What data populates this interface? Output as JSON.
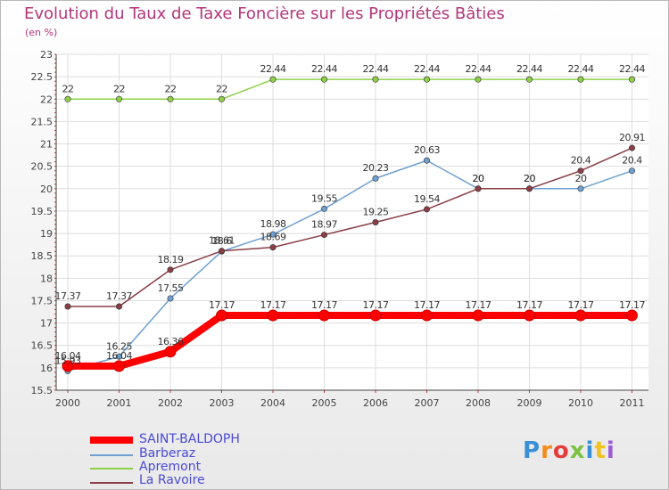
{
  "header": {
    "title": "Evolution du Taux de Taxe Foncière sur les Propriétés Bâties",
    "subtitle": "(en %)"
  },
  "logo": {
    "text": "Proxiti"
  },
  "chart_data": {
    "type": "line",
    "title": "Evolution du Taux de Taxe Foncière sur les Propriétés Bâties",
    "subtitle": "(en %)",
    "x": [
      "2000",
      "2001",
      "2002",
      "2003",
      "2004",
      "2005",
      "2006",
      "2007",
      "2008",
      "2009",
      "2010",
      "2011"
    ],
    "ylim": [
      15.5,
      23
    ],
    "yticks": [
      "15.5",
      "16",
      "16.5",
      "17",
      "17.5",
      "18",
      "18.5",
      "19",
      "19.5",
      "20",
      "20.5",
      "21",
      "21.5",
      "22",
      "22.5",
      "23"
    ],
    "grid": true,
    "legend_position": "bottom-left",
    "series": [
      {
        "name": "SAINT-BALDOPH",
        "color": "#ff0000",
        "values": [
          16.04,
          16.04,
          16.36,
          17.17,
          17.17,
          17.17,
          17.17,
          17.17,
          17.17,
          17.17,
          17.17,
          17.17
        ],
        "labels": [
          "16.04",
          "16.04",
          "16.36",
          "17.17",
          "17.17",
          "17.17",
          "17.17",
          "17.17",
          "17.17",
          "17.17",
          "17.17",
          "17.17"
        ]
      },
      {
        "name": "Barberaz",
        "color": "#6fa0d0",
        "values": [
          15.93,
          16.25,
          17.55,
          18.6,
          18.98,
          19.55,
          20.23,
          20.63,
          20,
          20,
          20,
          20.4
        ],
        "labels": [
          "15.93",
          "16.25",
          "17.55",
          "18.6",
          "18.98",
          "19.55",
          "20.23",
          "20.63",
          "20",
          "20",
          "20",
          "20.4"
        ]
      },
      {
        "name": "Apremont",
        "color": "#8fd04a",
        "values": [
          22,
          22,
          22,
          22,
          22.44,
          22.44,
          22.44,
          22.44,
          22.44,
          22.44,
          22.44,
          22.44
        ],
        "labels": [
          "22",
          "22",
          "22",
          "22",
          "22.44",
          "22.44",
          "22.44",
          "22.44",
          "22.44",
          "22.44",
          "22.44",
          "22.44"
        ]
      },
      {
        "name": "La Ravoire",
        "color": "#8a3e46",
        "values": [
          17.37,
          17.37,
          18.19,
          18.61,
          18.69,
          18.97,
          19.25,
          19.54,
          20,
          20,
          20.4,
          20.91
        ],
        "labels": [
          "17.37",
          "17.37",
          "18.19",
          "18.61",
          "18.69",
          "18.97",
          "19.25",
          "19.54",
          "20",
          "20",
          "20.4",
          "20.91"
        ]
      }
    ]
  }
}
